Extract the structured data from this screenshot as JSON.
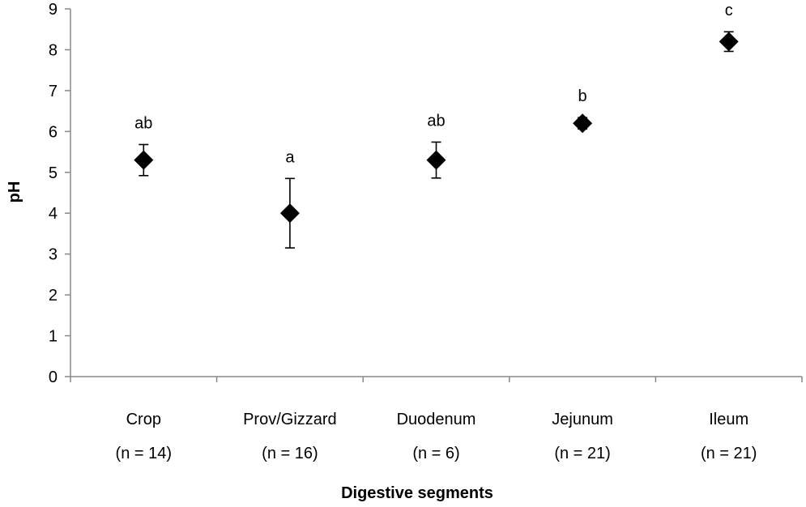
{
  "chart_data": {
    "type": "scatter",
    "title": "",
    "xlabel": "Digestive segments",
    "ylabel": "pH",
    "ylim": [
      0,
      9
    ],
    "yticks": [
      0,
      1,
      2,
      3,
      4,
      5,
      6,
      7,
      8,
      9
    ],
    "grid": false,
    "legend": "none",
    "marker": "diamond",
    "marker_color": "#000000",
    "categories": [
      {
        "name": "Crop",
        "n_label": "(n = 14)",
        "value": 5.3,
        "error": 0.38,
        "letter": "ab"
      },
      {
        "name": "Prov/Gizzard",
        "n_label": "(n = 16)",
        "value": 4.0,
        "error": 0.85,
        "letter": "a"
      },
      {
        "name": "Duodenum",
        "n_label": "(n = 6)",
        "value": 5.3,
        "error": 0.44,
        "letter": "ab"
      },
      {
        "name": "Jejunum",
        "n_label": "(n = 21)",
        "value": 6.2,
        "error": 0.14,
        "letter": "b"
      },
      {
        "name": "Ileum",
        "n_label": "(n = 21)",
        "value": 8.2,
        "error": 0.24,
        "letter": "c"
      }
    ]
  }
}
